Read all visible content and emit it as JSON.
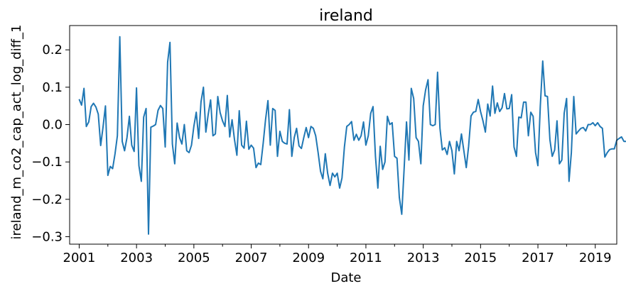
{
  "chart_data": {
    "type": "line",
    "title": "ireland",
    "xlabel": "Date",
    "ylabel": "ireland_m_co2_cap_act_log_diff_1",
    "xlim": [
      "2000-09",
      "2019-10"
    ],
    "ylim": [
      -0.32,
      0.265
    ],
    "x_ticks": [
      "2001",
      "2003",
      "2005",
      "2007",
      "2009",
      "2011",
      "2013",
      "2015",
      "2017",
      "2019"
    ],
    "y_ticks": [
      "0.2",
      "0.1",
      "0.0",
      "−0.1",
      "−0.2",
      "−0.3"
    ],
    "grid": false,
    "line_color": "#1f77b4",
    "series": [
      {
        "start": "2001-01",
        "frequency": "monthly",
        "values": [
          0.068,
          0.052,
          0.097,
          -0.005,
          0.007,
          0.048,
          0.057,
          0.047,
          0.028,
          -0.056,
          -0.005,
          0.05,
          -0.136,
          -0.112,
          -0.118,
          -0.078,
          -0.03,
          0.235,
          -0.045,
          -0.07,
          -0.035,
          0.022,
          -0.055,
          -0.072,
          0.098,
          -0.11,
          -0.152,
          0.02,
          0.043,
          -0.293,
          -0.007,
          -0.004,
          0.0,
          0.038,
          0.051,
          0.043,
          -0.06,
          0.167,
          0.22,
          -0.052,
          -0.105,
          0.004,
          -0.035,
          -0.052,
          0.0,
          -0.07,
          -0.075,
          -0.055,
          -0.005,
          0.033,
          -0.037,
          0.061,
          0.1,
          -0.02,
          0.027,
          0.066,
          -0.03,
          -0.025,
          0.075,
          0.032,
          0.01,
          -0.005,
          0.078,
          -0.033,
          0.013,
          -0.04,
          -0.082,
          0.037,
          -0.055,
          -0.063,
          0.009,
          -0.066,
          -0.055,
          -0.063,
          -0.115,
          -0.103,
          -0.107,
          -0.05,
          0.013,
          0.064,
          -0.055,
          0.043,
          0.038,
          -0.085,
          -0.018,
          -0.045,
          -0.05,
          -0.052,
          0.04,
          -0.085,
          -0.035,
          -0.01,
          -0.057,
          -0.064,
          -0.035,
          -0.008,
          -0.035,
          -0.005,
          -0.01,
          -0.03,
          -0.075,
          -0.125,
          -0.145,
          -0.078,
          -0.13,
          -0.163,
          -0.13,
          -0.14,
          -0.13,
          -0.17,
          -0.143,
          -0.06,
          -0.005,
          0.0,
          0.008,
          -0.042,
          -0.026,
          -0.042,
          -0.03,
          0.007,
          -0.055,
          -0.03,
          0.03,
          0.048,
          -0.085,
          -0.17,
          -0.058,
          -0.12,
          -0.1,
          0.022,
          0.0,
          0.005,
          -0.085,
          -0.09,
          -0.195,
          -0.24,
          -0.12,
          0.007,
          -0.095,
          0.097,
          0.07,
          -0.035,
          -0.045,
          -0.105,
          0.05,
          0.093,
          0.12,
          0.0,
          -0.003,
          0.0,
          0.14,
          -0.01,
          -0.068,
          -0.062,
          -0.08,
          -0.045,
          -0.07,
          -0.132,
          -0.045,
          -0.07,
          -0.025,
          -0.07,
          -0.115,
          -0.058,
          0.023,
          0.033,
          0.035,
          0.067,
          0.035,
          0.01,
          -0.02,
          0.055,
          0.023,
          0.103,
          0.03,
          0.058,
          0.035,
          0.045,
          0.083,
          0.042,
          0.043,
          0.08,
          -0.06,
          -0.085,
          0.02,
          0.018,
          0.06,
          0.06,
          -0.03,
          0.033,
          0.022,
          -0.075,
          -0.11,
          0.05,
          0.17,
          0.077,
          0.075,
          -0.04,
          -0.085,
          -0.068,
          0.01,
          -0.105,
          -0.095,
          0.03,
          0.07,
          -0.152,
          -0.075,
          0.075,
          -0.025,
          -0.017,
          -0.01,
          -0.008,
          -0.017,
          0.0,
          0.0,
          0.005,
          -0.003,
          0.005,
          -0.005,
          -0.01,
          -0.087,
          -0.075,
          -0.067,
          -0.065,
          -0.065,
          -0.042,
          -0.037,
          -0.033,
          -0.045,
          -0.045
        ]
      }
    ]
  }
}
